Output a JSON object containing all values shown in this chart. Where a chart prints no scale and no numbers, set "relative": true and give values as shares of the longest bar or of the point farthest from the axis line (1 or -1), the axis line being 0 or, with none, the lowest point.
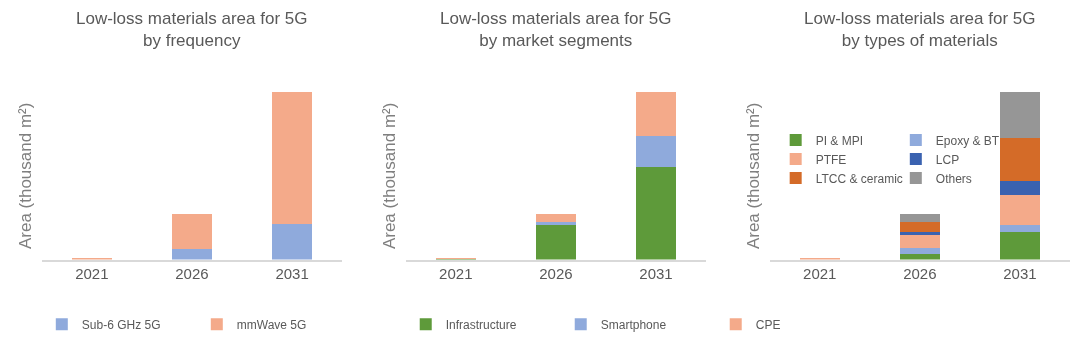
{
  "chart_data": [
    {
      "type": "bar",
      "title": "Low-loss materials area for 5G by frequency",
      "ylabel": "Area (thousand m²)",
      "categories": [
        "2021",
        "2026",
        "2031"
      ],
      "stacked": true,
      "relative": true,
      "legend": "bottom",
      "series": [
        {
          "name": "Sub-6 GHz 5G",
          "color": "#8faadc",
          "values": [
            null,
            0.066,
            0.211
          ]
        },
        {
          "name": "mmWave 5G",
          "color": "#f4aa8a",
          "values": [
            0.005,
            0.209,
            0.789
          ]
        }
      ]
    },
    {
      "type": "bar",
      "title": "Low-loss materials area for 5G by market segments",
      "ylabel": "Area (thousand m²)",
      "categories": [
        "2021",
        "2026",
        "2031"
      ],
      "stacked": true,
      "relative": true,
      "legend": "bottom",
      "series": [
        {
          "name": "Infrastructure",
          "color": "#5e9a3a",
          "values": [
            0.004,
            0.209,
            0.552
          ]
        },
        {
          "name": "Smartphone",
          "color": "#8faadc",
          "values": [
            0.001,
            0.014,
            0.183
          ]
        },
        {
          "name": "CPE",
          "color": "#f4aa8a",
          "values": [
            0.002,
            0.052,
            0.265
          ]
        }
      ]
    },
    {
      "type": "bar",
      "title": "Low-loss materials area for 5G by types of materials",
      "ylabel": "Area (thousand m²)",
      "categories": [
        "2021",
        "2026",
        "2031"
      ],
      "stacked": true,
      "relative": true,
      "legend": "top left",
      "series": [
        {
          "name": "PI & MPI",
          "color": "#5e9a3a",
          "values": [
            null,
            0.033,
            0.165
          ]
        },
        {
          "name": "Epoxy & BT",
          "color": "#8faadc",
          "values": [
            null,
            0.035,
            0.043
          ]
        },
        {
          "name": "PTFE",
          "color": "#f4aa8a",
          "values": [
            0.006,
            0.077,
            0.175
          ]
        },
        {
          "name": "LCP",
          "color": "#3a62b0",
          "values": [
            null,
            0.018,
            0.084
          ]
        },
        {
          "name": "LTCC & ceramic",
          "color": "#d46b28",
          "values": [
            null,
            0.063,
            0.257
          ]
        },
        {
          "name": "Others",
          "color": "#969696",
          "values": [
            null,
            0.045,
            0.276
          ]
        }
      ]
    }
  ]
}
